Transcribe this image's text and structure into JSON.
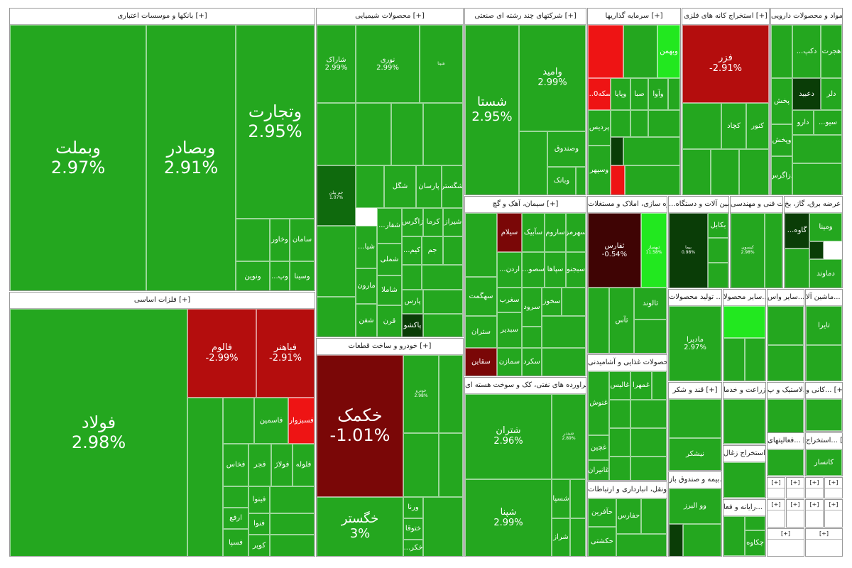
{
  "groups": {
    "banks": "بانکها و موسسات اعتباری [+]",
    "chem": "محصولات شیمیایی [+]",
    "multi": "شرکتهای چند رشته ای صنعتی [+]",
    "invest": "سرمایه گذاریها [+]",
    "mines": "استخراج کانه های فلزی [+]",
    "pharma": "مواد و محصولات دارویی [+]",
    "metals": "فلزات اساسی [+]",
    "auto": "خودرو و ساخت قطعات [+]",
    "cement": "سیمان، آهک و گچ [+]",
    "refine": "فراورده های نفتی، کک و سوخت هسته ای [+]",
    "realestate": "انبوه سازی، املاک و مستغلات [+]",
    "machinery": "...ماشین آلات و دستگاه [+]",
    "eng": "خدمات فنی و مهندسی [+]",
    "utility": "عرضه برق، گاز، بخ [+]",
    "food": "محصولات غذایی و آشامیدنی [+]",
    "sugar": "قند و شکر [+]",
    "transport": "حمل ونقل، انبارداری و ارتباطات [+]",
    "other_prod": "تولید محصولات ... [+]",
    "other_prod2": "سایر محصولا... [+]",
    "other_act": "سایر واس... [+]",
    "machinery2": "ماشین آلا... [+]",
    "misc_a": "[+]",
    "misc_b": "[+]",
    "coal": "استخراج زغال [+]",
    "farming": "زراعت و خدما... [+]",
    "plastic": "لاستیک و پ... [+]",
    "nonmetal": "کانی و... [+]",
    "it": "فعالیتهای... [+]",
    "extract2": "استخراج... [+]",
    "fund": "بیمه و صندوق باز... [+]",
    "comp": "رایانه و فعا... [+]",
    "small1": "[+]",
    "small2": "[+]",
    "small3": "[+]",
    "small4": "[+]",
    "small5": "[+]",
    "small6": "[+]",
    "small7": "[+]",
    "small8": "[+]"
  },
  "tiles": {
    "vbemellat": {
      "name": "وبملت",
      "pct": "2.97%"
    },
    "vbsader": {
      "name": "وبصادر",
      "pct": "2.91%"
    },
    "vtejarat": {
      "name": "وتجارت",
      "pct": "2.95%"
    },
    "saman": {
      "name": "سامان"
    },
    "vkhavar": {
      "name": "وخاور"
    },
    "vsina": {
      "name": "وسینا"
    },
    "vnovin": {
      "name": "ونوین"
    },
    "pout": {
      "name": "...وپ"
    },
    "foolad": {
      "name": "فولاد",
      "pct": "2.98%"
    },
    "folam": {
      "name": "فالوم",
      "pct": "-2.99%"
    },
    "fbahonar": {
      "name": "فباهنر",
      "pct": "-2.91%"
    },
    "faspahan": {
      "name": "فسپا"
    },
    "fasmin": {
      "name": "فاسمین"
    },
    "fesabzevar": {
      "name": "فسبزوار"
    },
    "fekhas": {
      "name": "فخاس"
    },
    "fajr": {
      "name": "فجر"
    },
    "foulaz": {
      "name": "فولاژ"
    },
    "felole": {
      "name": "فلوله"
    },
    "fenava": {
      "name": "فنوا"
    },
    "faraf": {
      "name": "ارفع"
    },
    "fkouyer": {
      "name": "کویر"
    },
    "fesapa": {
      "name": "فسپا"
    },
    "fineva": {
      "name": "فینوا"
    },
    "shanrak": {
      "name": "شاراک",
      "pct": "2.99%"
    },
    "noori": {
      "name": "نوری",
      "pct": "2.99%"
    },
    "shepna": {
      "name": "شپنا"
    },
    "shegol": {
      "name": "شگل"
    },
    "parsan": {
      "name": "پارسان"
    },
    "shegostar": {
      "name": "شگستر"
    },
    "zagros": {
      "name": "زاگرس"
    },
    "kerma": {
      "name": "کرما"
    },
    "shiraz": {
      "name": "شیراز"
    },
    "shafar": {
      "name": "...شفار"
    },
    "shima": {
      "name": "...شیا"
    },
    "jam": {
      "name": "جم"
    },
    "kim": {
      "name": "...کیم"
    },
    "shemli": {
      "name": "شملی"
    },
    "marun": {
      "name": "مارون"
    },
    "shamla": {
      "name": "شاملا"
    },
    "pars": {
      "name": "پارس"
    },
    "shafan": {
      "name": "شفن"
    },
    "qorn": {
      "name": "قرن"
    },
    "pakshoo": {
      "name": "پاکشو"
    },
    "jampil": {
      "name": "جم پیلن",
      "pct": "1.07%"
    },
    "shasta": {
      "name": "شستا",
      "pct": "2.95%"
    },
    "vomid": {
      "name": "وامید",
      "pct": "2.99%"
    },
    "vsandogh": {
      "name": "وصندوق"
    },
    "vbank": {
      "name": "وبانک"
    },
    "khakmak": {
      "name": "خکمک",
      "pct": "-1.01%"
    },
    "khegostar": {
      "name": "خگستر",
      "pct": "3%"
    },
    "khodro": {
      "name": "خودرو",
      "pct": "2.98%"
    },
    "vorna": {
      "name": "ورنا"
    },
    "khetoga": {
      "name": "ختوقا"
    },
    "khekar": {
      "name": "...خکر"
    },
    "sielam": {
      "name": "سیلام"
    },
    "sabik": {
      "name": "سآبیک"
    },
    "saroom": {
      "name": "ساروم"
    },
    "sehormoz": {
      "name": "سهرمز"
    },
    "sardoon": {
      "name": "...اردن"
    },
    "sesoofi": {
      "name": "...سصو"
    },
    "sepaha": {
      "name": "سپاها"
    },
    "sebjno": {
      "name": "سبجنو"
    },
    "sahegmat": {
      "name": "سهگمت"
    },
    "seghrab": {
      "name": "سغرب"
    },
    "sarvo": {
      "name": "سرود"
    },
    "sakhooz": {
      "name": "سخوز"
    },
    "satran": {
      "name": "ستران"
    },
    "sebdir": {
      "name": "سبدیر"
    },
    "saqen": {
      "name": "سقاین"
    },
    "samazan": {
      "name": "سمازن"
    },
    "sekord": {
      "name": "سکرد"
    },
    "shetran": {
      "name": "شتران",
      "pct": "2.96%"
    },
    "shepna2": {
      "name": "شپنا",
      "pct": "2.99%"
    },
    "shebandar": {
      "name": "شبندر",
      "pct": "2.89%"
    },
    "shesapa": {
      "name": "شسپا"
    },
    "sheraz": {
      "name": "شراز"
    },
    "vbahman": {
      "name": "وبهمن"
    },
    "vpaya": {
      "name": "وپایا"
    },
    "sba": {
      "name": "صبا"
    },
    "vava": {
      "name": "وآوا"
    },
    "psekeh": {
      "name": "...سکه0"
    },
    "pardis": {
      "name": "پردیس"
    },
    "vsepehr": {
      "name": "وسپهر"
    },
    "fehr": {
      "name": "فزر",
      "pct": "-2.91%"
    },
    "kechad": {
      "name": "کچاد"
    },
    "kenoor": {
      "name": "کنور"
    },
    "dabid": {
      "name": "دعبید"
    },
    "dalr": {
      "name": "دلر"
    },
    "hejrat": {
      "name": "هجرت"
    },
    "dakap": {
      "name": "...دکپ"
    },
    "dpakhsh": {
      "name": "پخش"
    },
    "daroo": {
      "name": "دارو"
    },
    "vpakhsh": {
      "name": "وپخش"
    },
    "dzagros": {
      "name": "دزاگرس"
    },
    "dbio": {
      "name": "...سیو"
    },
    "thfars": {
      "name": "ثفارس",
      "pct": "-0.54%"
    },
    "tabha": {
      "name": "ثبهساز",
      "pct": "11.58%"
    },
    "taloond": {
      "name": "ثالوند"
    },
    "tas": {
      "name": "ثآس"
    },
    "biyama": {
      "name": "بیما",
      "pct": "0.98%"
    },
    "bekabl": {
      "name": "بکابل"
    },
    "kisoun": {
      "name": "کیسون",
      "pct": "2.98%"
    },
    "vegah": {
      "name": "...گاوه"
    },
    "vmapna": {
      "name": "ومپنا"
    },
    "demavand": {
      "name": "دماوند"
    },
    "madira": {
      "name": "مادیرا",
      "pct": "2.97%"
    },
    "ghanosh": {
      "name": "غنوش"
    },
    "ghalis": {
      "name": "غالیس"
    },
    "ghemhra": {
      "name": "غمهرا"
    },
    "ghechin": {
      "name": "غچین"
    },
    "ghanair": {
      "name": "غانیران"
    },
    "nishekar": {
      "name": "نیشکر"
    },
    "hafarin": {
      "name": "حآفرین"
    },
    "hafars": {
      "name": "حفارس"
    },
    "hakashti": {
      "name": "حکشتی"
    },
    "valbarz": {
      "name": "وو البرز"
    },
    "taira": {
      "name": "تایرا"
    },
    "kansar": {
      "name": "کانسار"
    },
    "chekave": {
      "name": "چکاوه"
    }
  },
  "colors": {
    "green": "#24a71f",
    "light_green": "#22e81f",
    "dark_green": "#0f6a0d",
    "red": "#b40d0d",
    "dark_red": "#7a0707",
    "bright_red": "#ee1414"
  }
}
